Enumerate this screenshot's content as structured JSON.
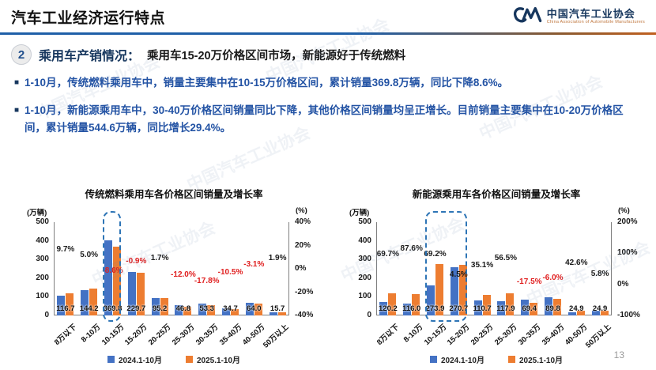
{
  "header": {
    "title": "汽车工业经济运行特点",
    "logo_cn": "中国汽车工业协会",
    "logo_en": "China Association of Automobile Manufacturers"
  },
  "section": {
    "number": "2",
    "title": "乘用车产销情况：",
    "subtitle": "乘用车15-20万价格区间市场，新能源好于传统燃料"
  },
  "bullets": [
    "1-10月，传统燃料乘用车中，销量主要集中在10-15万价格区间，累计销量369.8万辆，同比下降8.6%。",
    "1-10月，新能源乘用车中，30-40万价格区间销量同比下降，其他价格区间销量均呈正增长。目前销量主要集中在10-20万价格区间，累计销量544.6万辆，同比增长29.4%。"
  ],
  "page_number": "13",
  "watermark_text": "中国汽车工业协会",
  "colors": {
    "bar_2024": "#4472C4",
    "bar_2025": "#ED7D31",
    "positive_label": "#1a1a1a",
    "negative_label": "#E02020",
    "highlight_border": "#2E75B6"
  },
  "chart_data": [
    {
      "type": "bar",
      "title": "传统燃料乘用车各价格区间销量及增长率",
      "left_axis": {
        "unit": "(万辆)",
        "min": 0,
        "max": 500,
        "step": 100
      },
      "right_axis": {
        "unit": "(%)",
        "min": -40,
        "max": 40,
        "step": 20,
        "suffix": "%"
      },
      "categories": [
        "8万以下",
        "8-10万",
        "10-15万",
        "15-20万",
        "20-25万",
        "25-30万",
        "30-35万",
        "35-40万",
        "40-50万",
        "50万以上"
      ],
      "series": [
        {
          "name": "2024.1-10月",
          "color_key": "bar_2024",
          "values": [
            106.4,
            137.3,
            404.6,
            231.8,
            93.6,
            53.2,
            64.8,
            38.8,
            66.0,
            15.4
          ]
        },
        {
          "name": "2025.1-10月",
          "color_key": "bar_2025",
          "values": [
            116.7,
            144.2,
            369.8,
            229.7,
            95.2,
            46.8,
            53.3,
            34.7,
            64.0,
            15.7
          ]
        }
      ],
      "value_labels": [
        "116.7",
        "144.2",
        "369.8",
        "229.7",
        "95.2",
        "46.8",
        "53.3",
        "34.7",
        "64.0",
        "15.7"
      ],
      "growth_pct": [
        9.7,
        5.0,
        -8.6,
        -0.9,
        1.7,
        -12.0,
        -17.8,
        -10.5,
        -3.1,
        1.9
      ],
      "growth_labels": [
        "9.7%",
        "5.0%",
        "-8.6%",
        "-0.9%",
        "1.7%",
        "-12.0%",
        "-17.8%",
        "-10.5%",
        "-3.1%",
        "1.9%"
      ],
      "highlight_categories": {
        "from": 2,
        "to": 2
      },
      "legend": [
        "2024.1-10月",
        "2025.1-10月"
      ]
    },
    {
      "type": "bar",
      "title": "新能源乘用车各价格区间销量及增长率",
      "left_axis": {
        "unit": "(万辆)",
        "min": 0,
        "max": 500,
        "step": 100
      },
      "right_axis": {
        "unit": "(%)",
        "min": -100,
        "max": 200,
        "step": 100,
        "suffix": "%"
      },
      "categories": [
        "8万以下",
        "8-10万",
        "10-15万",
        "15-20万",
        "20-25万",
        "25-30万",
        "30-35万",
        "35-40万",
        "40-50万",
        "50万以上"
      ],
      "series": [
        {
          "name": "2024.1-10月",
          "color_key": "bar_2024",
          "values": [
            70.8,
            61.8,
            161.9,
            259.0,
            81.9,
            75.3,
            84.1,
            95.5,
            17.5,
            23.5
          ]
        },
        {
          "name": "2025.1-10月",
          "color_key": "bar_2025",
          "values": [
            120.2,
            116.0,
            273.9,
            270.7,
            110.7,
            117.9,
            69.4,
            89.8,
            24.9,
            24.9
          ]
        }
      ],
      "value_labels": [
        "120.2",
        "116.0",
        "273.9",
        "270.7",
        "110.7",
        "117.9",
        "69.4",
        "89.8",
        "24.9",
        "24.9"
      ],
      "growth_pct": [
        69.7,
        87.6,
        69.2,
        4.5,
        35.1,
        56.5,
        -17.5,
        -6.0,
        42.6,
        5.8
      ],
      "growth_labels": [
        "69.7%",
        "87.6%",
        "69.2%",
        "4.5%",
        "35.1%",
        "56.5%",
        "-17.5%",
        "-6.0%",
        "42.6%",
        "5.8%"
      ],
      "highlight_categories": {
        "from": 2,
        "to": 3
      },
      "legend": [
        "2024.1-10月",
        "2025.1-10月"
      ]
    }
  ]
}
